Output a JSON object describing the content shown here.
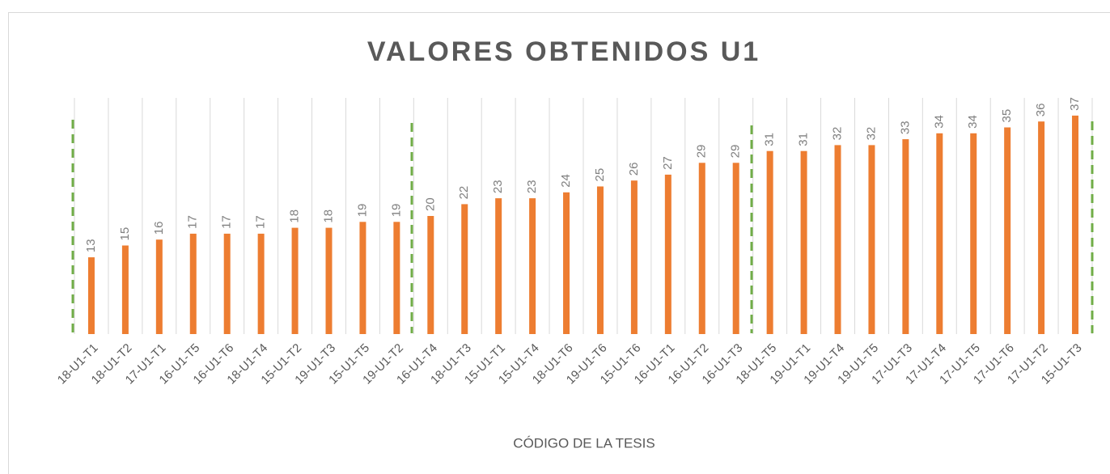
{
  "chart_data": {
    "type": "bar",
    "title": "VALORES OBTENIDOS U1",
    "x_label": "CÓDIGO DE LA TESIS",
    "categories": [
      "18-U1-T1",
      "18-U1-T2",
      "17-U1-T1",
      "16-U1-T5",
      "16-U1-T6",
      "18-U1-T4",
      "15-U1-T2",
      "19-U1-T3",
      "15-U1-T5",
      "19-U1-T2",
      "16-U1-T4",
      "18-U1-T3",
      "15-U1-T1",
      "15-U1-T4",
      "18-U1-T6",
      "19-U1-T6",
      "15-U1-T6",
      "16-U1-T1",
      "16-U1-T2",
      "16-U1-T3",
      "18-U1-T5",
      "19-U1-T1",
      "19-U1-T4",
      "19-U1-T5",
      "17-U1-T3",
      "17-U1-T4",
      "17-U1-T5",
      "17-U1-T6",
      "17-U1-T2",
      "15-U1-T3"
    ],
    "values": [
      13,
      15,
      16,
      17,
      17,
      17,
      18,
      18,
      19,
      19,
      20,
      22,
      23,
      23,
      24,
      25,
      26,
      27,
      29,
      29,
      31,
      31,
      32,
      32,
      33,
      34,
      34,
      35,
      36,
      37
    ],
    "color": "#ed7d31",
    "ylim": [
      0,
      40
    ]
  }
}
